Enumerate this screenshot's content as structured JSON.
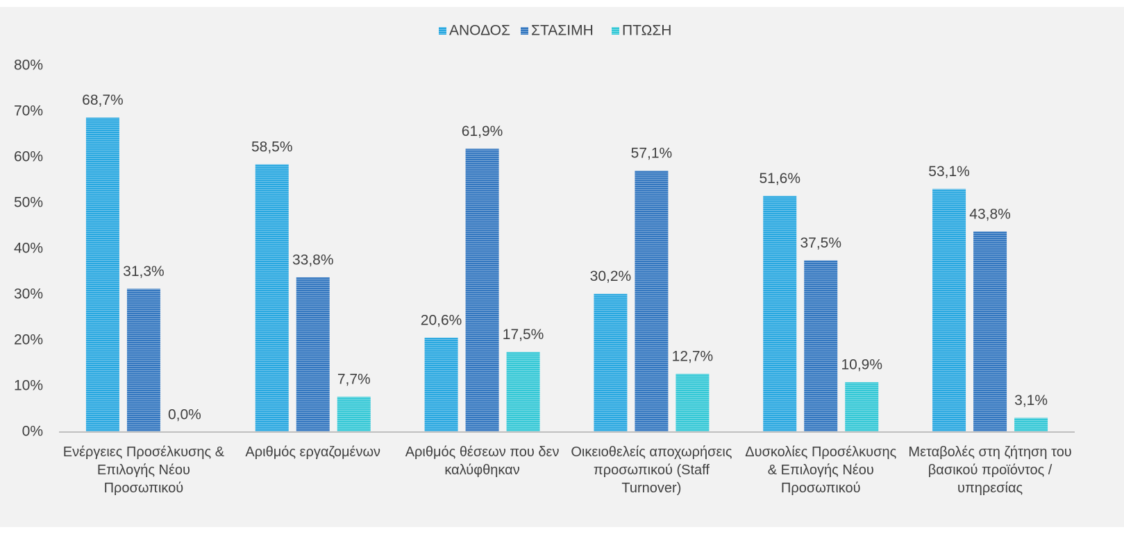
{
  "chart_data": {
    "type": "bar",
    "categories": [
      "Ενέργειες Προσέλκυσης & Επιλογής Νέου Προσωπικού",
      "Αριθμός εργαζομένων",
      "Αριθμός θέσεων που δεν καλύφθηκαν",
      "Οικειοθελείς αποχωρήσεις προσωπικού (Staff Turnover)",
      "Δυσκολίες Προσέλκυσης & Επιλογής Νέου Προσωπικού",
      "Μεταβολές στη ζήτηση του βασικού προϊόντος / υπηρεσίας"
    ],
    "series": [
      {
        "name": "ΑΝΟΔΟΣ",
        "color": "#2aa8e0",
        "values": [
          68.7,
          58.5,
          20.6,
          30.2,
          51.6,
          53.1
        ],
        "value_labels": [
          "68,7%",
          "58,5%",
          "20,6%",
          "30,2%",
          "51,6%",
          "53,1%"
        ]
      },
      {
        "name": "ΣΤΑΣΙΜΗ",
        "color": "#3578c0",
        "values": [
          31.3,
          33.8,
          61.9,
          57.1,
          37.5,
          43.8
        ],
        "value_labels": [
          "31,3%",
          "33,8%",
          "61,9%",
          "57,1%",
          "37,5%",
          "43,8%"
        ]
      },
      {
        "name": "ΠΤΩΣΗ",
        "color": "#35c8d6",
        "values": [
          0.0,
          7.7,
          17.5,
          12.7,
          10.9,
          3.1
        ],
        "value_labels": [
          "0,0%",
          "7,7%",
          "17,5%",
          "12,7%",
          "10,9%",
          "3,1%"
        ]
      }
    ],
    "ylim": [
      0,
      80
    ],
    "yticks": [
      {
        "value": 0,
        "label": "0%"
      },
      {
        "value": 10,
        "label": "10%"
      },
      {
        "value": 20,
        "label": "20%"
      },
      {
        "value": 30,
        "label": "30%"
      },
      {
        "value": 40,
        "label": "40%"
      },
      {
        "value": 50,
        "label": "50%"
      },
      {
        "value": 60,
        "label": "60%"
      },
      {
        "value": 70,
        "label": "70%"
      },
      {
        "value": 80,
        "label": "80%"
      }
    ],
    "grid": false,
    "legend": "top"
  }
}
